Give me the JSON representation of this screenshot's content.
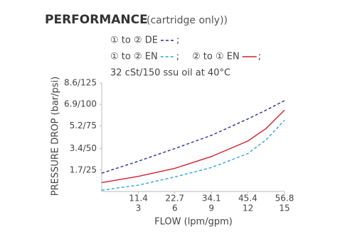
{
  "chart_data": {
    "type": "line",
    "title": "PERFORMANCE",
    "subtitle": "(cartridge only))",
    "note": "32 cSt/150 ssu oil at 40°C",
    "legend_separator": ";",
    "x_label": "FLOW (lpm/gpm)",
    "y_label": "PRESSURE DROP (bar/psi)",
    "x": [
      0,
      11.4,
      22.7,
      34.1,
      45.4,
      51.1,
      56.8
    ],
    "xlim": [
      0,
      56.8
    ],
    "xticks": [
      11.4,
      22.7,
      34.1,
      45.4,
      56.8
    ],
    "x2lim": [
      0,
      15
    ],
    "x2ticks": [
      3,
      6,
      9,
      12,
      15
    ],
    "ylim": [
      0,
      8.6
    ],
    "yticks": [
      {
        "value": 1.7,
        "label": "1.7/25"
      },
      {
        "value": 3.4,
        "label": "3.4/50"
      },
      {
        "value": 5.2,
        "label": "5.2/75"
      },
      {
        "value": 6.9,
        "label": "6.9/100"
      },
      {
        "value": 8.6,
        "label": "8.6/125"
      }
    ],
    "series": [
      {
        "name": "① to ② DE",
        "color": "#2a2f8f",
        "style": "dashed",
        "values": [
          1.45,
          2.4,
          3.4,
          4.45,
          5.75,
          6.45,
          7.2
        ]
      },
      {
        "name": "① to ② EN",
        "color": "#29a6d9",
        "style": "dashed",
        "values": [
          0.1,
          0.5,
          1.15,
          1.9,
          3.0,
          4.1,
          5.65
        ]
      },
      {
        "name": "② to ① EN",
        "color": "#d4202f",
        "style": "solid",
        "values": [
          0.7,
          1.2,
          1.83,
          2.77,
          4.0,
          5.0,
          6.45
        ]
      }
    ]
  }
}
